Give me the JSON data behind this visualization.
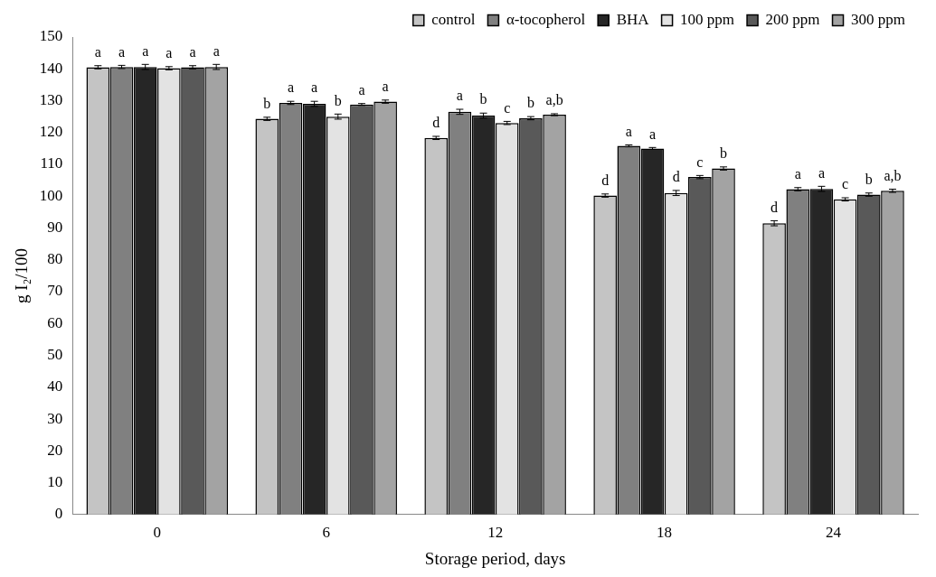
{
  "chart_data": {
    "type": "bar",
    "xlabel": "Storage period, days",
    "ylabel": "g I₂/100",
    "categories": [
      "0",
      "6",
      "12",
      "18",
      "24"
    ],
    "series": [
      {
        "name": "control",
        "color": "#c4c4c4",
        "values": [
          140.5,
          124.3,
          118.3,
          100.2,
          91.5
        ],
        "errors": [
          0.5,
          0.5,
          0.5,
          0.5,
          0.8
        ],
        "value_labels": [
          "a",
          "b",
          "d",
          "d",
          "d"
        ]
      },
      {
        "name": "α-tocopherol",
        "color": "#808080",
        "values": [
          140.6,
          129.3,
          126.5,
          115.8,
          102.2
        ],
        "errors": [
          0.5,
          0.5,
          0.8,
          0.3,
          0.5
        ],
        "value_labels": [
          "a",
          "a",
          "a",
          "a",
          "a"
        ]
      },
      {
        "name": "BHA",
        "color": "#262626",
        "values": [
          140.6,
          129.0,
          125.3,
          115.0,
          102.3
        ],
        "errors": [
          0.8,
          0.8,
          0.8,
          0.3,
          0.8
        ],
        "value_labels": [
          "a",
          "a",
          "b",
          "a",
          "a"
        ]
      },
      {
        "name": "100 ppm",
        "color": "#e3e3e3",
        "values": [
          140.2,
          125.0,
          123.0,
          101.0,
          99.0
        ],
        "errors": [
          0.5,
          0.8,
          0.5,
          0.8,
          0.5
        ],
        "value_labels": [
          "a",
          "b",
          "c",
          "d",
          "c"
        ]
      },
      {
        "name": "200 ppm",
        "color": "#595959",
        "values": [
          140.5,
          128.8,
          124.5,
          106.0,
          100.5
        ],
        "errors": [
          0.5,
          0.3,
          0.5,
          0.5,
          0.5
        ],
        "value_labels": [
          "a",
          "a",
          "b",
          "c",
          "b"
        ]
      },
      {
        "name": "300 ppm",
        "color": "#a3a3a3",
        "values": [
          140.6,
          129.7,
          125.6,
          108.7,
          101.7
        ],
        "errors": [
          0.8,
          0.5,
          0.3,
          0.5,
          0.5
        ],
        "value_labels": [
          "a",
          "a",
          "a,b",
          "b",
          "a,b"
        ]
      }
    ],
    "ylim": [
      0,
      150
    ],
    "yticks": [
      0,
      10,
      20,
      30,
      40,
      50,
      60,
      70,
      80,
      90,
      100,
      110,
      120,
      130,
      140,
      150
    ],
    "grid": false,
    "legend": "top"
  }
}
